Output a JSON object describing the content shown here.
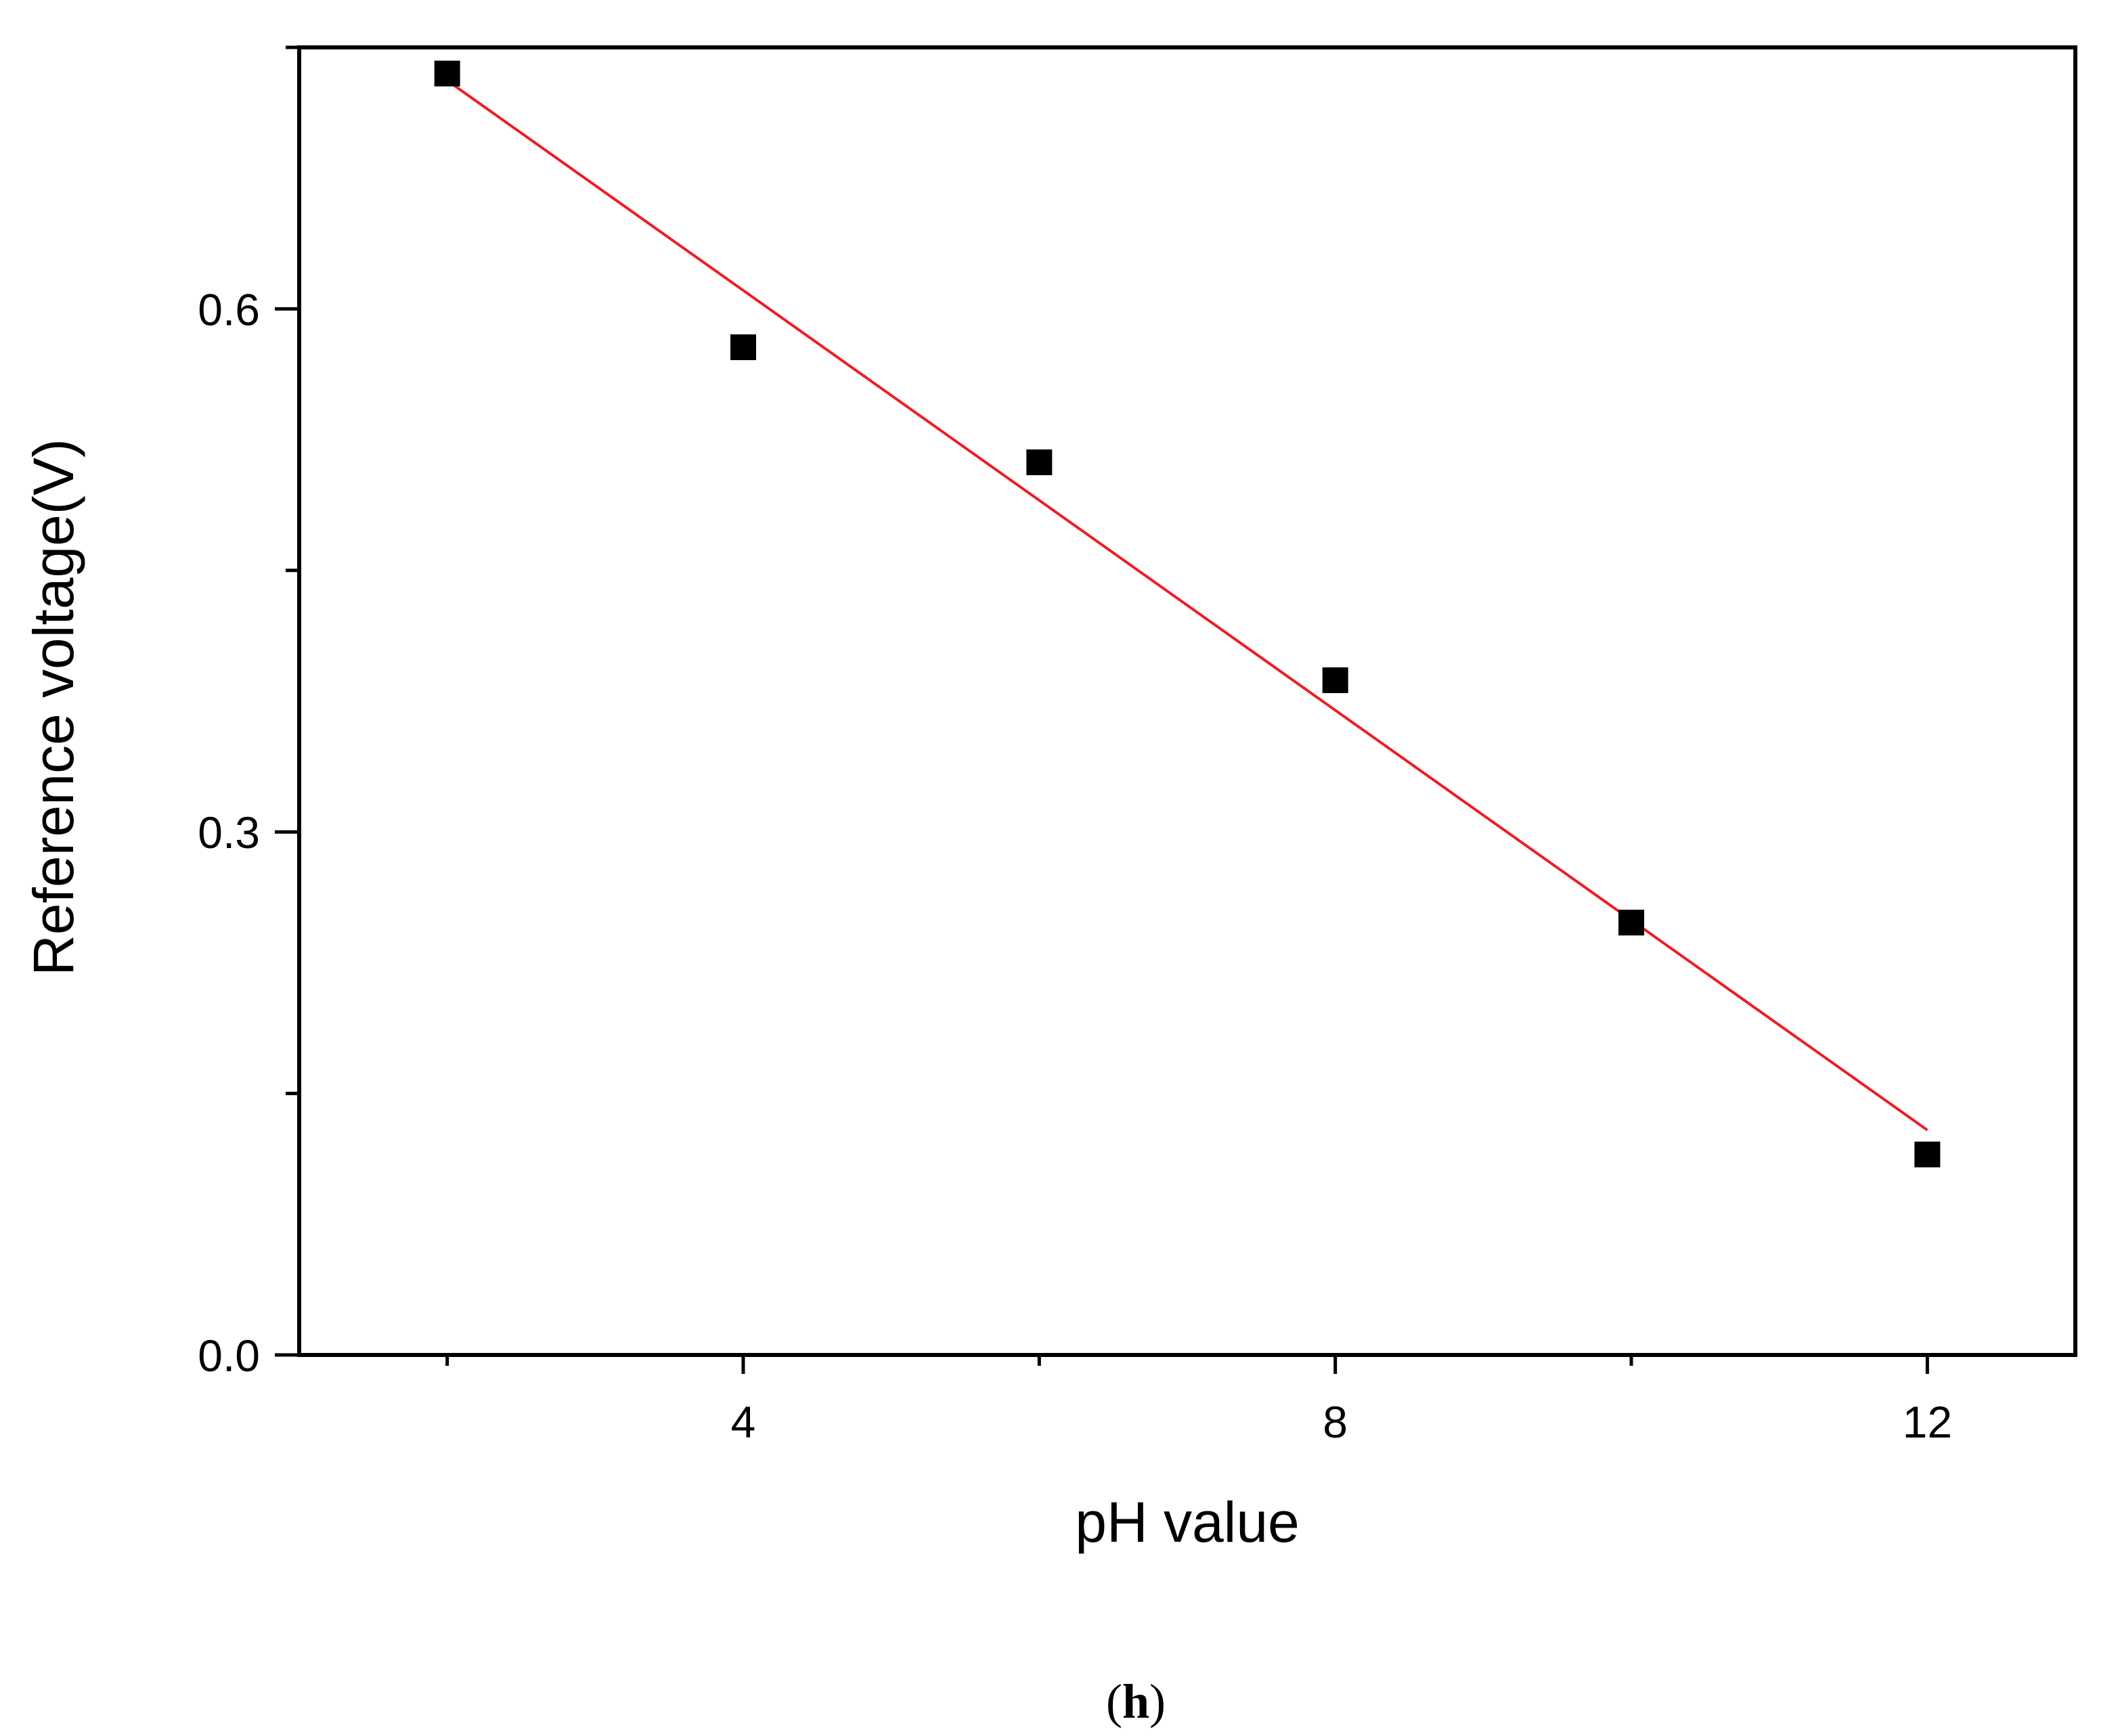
{
  "chart_data": {
    "type": "scatter",
    "xlabel": "pH value",
    "ylabel": "Reference voltage(V)",
    "xlim": [
      1,
      13
    ],
    "ylim": [
      0,
      0.75
    ],
    "x_ticks_major": [
      4,
      8,
      12
    ],
    "x_ticks_minor": [
      2,
      6,
      10
    ],
    "y_ticks_major": [
      0.0,
      0.3,
      0.6
    ],
    "y_ticks_minor": [
      0.15,
      0.45,
      0.75
    ],
    "x_tick_labels": [
      "4",
      "8",
      "12"
    ],
    "y_tick_labels": [
      "0.0",
      "0.3",
      "0.6"
    ],
    "grid": false,
    "series": [
      {
        "type": "scatter",
        "marker": "square",
        "color": "#000000",
        "x": [
          2,
          4,
          6,
          8,
          10,
          12
        ],
        "y": [
          0.735,
          0.578,
          0.512,
          0.387,
          0.248,
          0.115
        ]
      },
      {
        "type": "line",
        "color": "#ee1c24",
        "x": [
          2,
          12
        ],
        "y": [
          0.731,
          0.129
        ]
      }
    ]
  },
  "panel_label": {
    "open": "(",
    "letter": "h",
    "close": ")"
  }
}
